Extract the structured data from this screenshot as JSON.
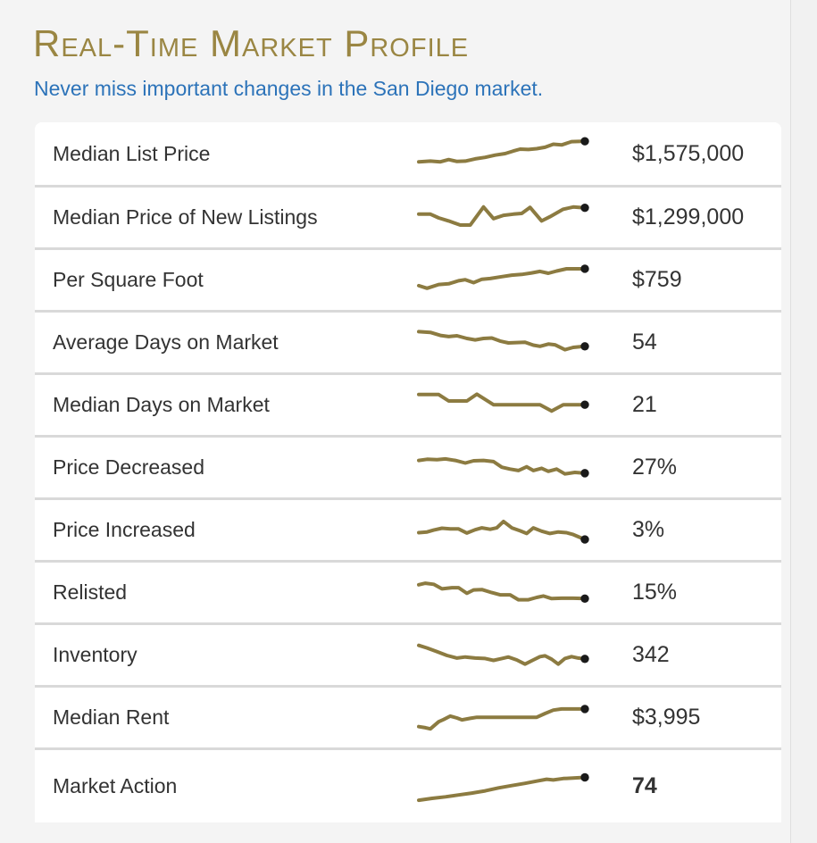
{
  "header": {
    "title": "Real-Time Market Profile",
    "subtitle": "Never miss important changes in the San Diego market."
  },
  "colors": {
    "title": "#9a8643",
    "subtitle": "#2c73b9",
    "sparkline": "#8c7b41",
    "dot": "#1a1a1a",
    "row_text": "#333333",
    "divider": "#d9d9d9",
    "page_background": "#f4f4f4",
    "row_background": "#ffffff"
  },
  "rows": [
    {
      "label": "Median List Price",
      "value": "$1,575,000",
      "bold": false,
      "trend": [
        [
          0,
          28
        ],
        [
          7,
          30
        ],
        [
          13,
          28
        ],
        [
          18,
          34
        ],
        [
          23,
          29
        ],
        [
          28,
          30
        ],
        [
          34,
          36
        ],
        [
          40,
          40
        ],
        [
          46,
          46
        ],
        [
          52,
          50
        ],
        [
          57,
          57
        ],
        [
          61,
          62
        ],
        [
          66,
          61
        ],
        [
          71,
          63
        ],
        [
          76,
          67
        ],
        [
          81,
          75
        ],
        [
          86,
          73
        ],
        [
          92,
          82
        ],
        [
          100,
          83
        ]
      ]
    },
    {
      "label": "Median Price of New Listings",
      "value": "$1,299,000",
      "bold": false,
      "trend": [
        [
          0,
          60
        ],
        [
          7,
          60
        ],
        [
          12,
          50
        ],
        [
          18,
          42
        ],
        [
          25,
          31
        ],
        [
          31,
          31
        ],
        [
          39,
          79
        ],
        [
          45,
          48
        ],
        [
          51,
          57
        ],
        [
          57,
          60
        ],
        [
          62,
          62
        ],
        [
          67,
          78
        ],
        [
          74,
          42
        ],
        [
          79,
          53
        ],
        [
          87,
          73
        ],
        [
          93,
          79
        ],
        [
          100,
          77
        ]
      ]
    },
    {
      "label": "Per Square Foot",
      "value": "$759",
      "bold": false,
      "trend": [
        [
          0,
          36
        ],
        [
          5,
          29
        ],
        [
          12,
          39
        ],
        [
          18,
          41
        ],
        [
          24,
          49
        ],
        [
          28,
          52
        ],
        [
          33,
          44
        ],
        [
          38,
          53
        ],
        [
          43,
          55
        ],
        [
          50,
          60
        ],
        [
          56,
          64
        ],
        [
          62,
          66
        ],
        [
          68,
          70
        ],
        [
          73,
          74
        ],
        [
          78,
          69
        ],
        [
          83,
          75
        ],
        [
          89,
          81
        ],
        [
          95,
          81
        ],
        [
          100,
          81
        ]
      ]
    },
    {
      "label": "Average Days on Market",
      "value": "54",
      "bold": false,
      "trend": [
        [
          0,
          80
        ],
        [
          7,
          78
        ],
        [
          13,
          70
        ],
        [
          18,
          67
        ],
        [
          23,
          69
        ],
        [
          29,
          62
        ],
        [
          34,
          58
        ],
        [
          39,
          62
        ],
        [
          44,
          63
        ],
        [
          49,
          55
        ],
        [
          54,
          50
        ],
        [
          59,
          51
        ],
        [
          64,
          52
        ],
        [
          69,
          44
        ],
        [
          73,
          41
        ],
        [
          78,
          47
        ],
        [
          82,
          45
        ],
        [
          88,
          32
        ],
        [
          93,
          38
        ],
        [
          100,
          41
        ]
      ]
    },
    {
      "label": "Median Days on Market",
      "value": "21",
      "bold": false,
      "trend": [
        [
          0,
          79
        ],
        [
          12,
          79
        ],
        [
          18,
          62
        ],
        [
          29,
          62
        ],
        [
          35,
          80
        ],
        [
          45,
          52
        ],
        [
          55,
          52
        ],
        [
          73,
          52
        ],
        [
          80,
          35
        ],
        [
          87,
          52
        ],
        [
          94,
          52
        ],
        [
          100,
          52
        ]
      ]
    },
    {
      "label": "Price Decreased",
      "value": "27%",
      "bold": false,
      "trend": [
        [
          0,
          70
        ],
        [
          5,
          73
        ],
        [
          11,
          72
        ],
        [
          16,
          74
        ],
        [
          22,
          70
        ],
        [
          28,
          63
        ],
        [
          33,
          69
        ],
        [
          39,
          70
        ],
        [
          45,
          67
        ],
        [
          50,
          52
        ],
        [
          55,
          47
        ],
        [
          60,
          43
        ],
        [
          65,
          53
        ],
        [
          69,
          43
        ],
        [
          74,
          49
        ],
        [
          78,
          41
        ],
        [
          83,
          47
        ],
        [
          88,
          34
        ],
        [
          94,
          38
        ],
        [
          100,
          36
        ]
      ]
    },
    {
      "label": "Price Increased",
      "value": "3%",
      "bold": false,
      "trend": [
        [
          0,
          44
        ],
        [
          5,
          46
        ],
        [
          9,
          51
        ],
        [
          14,
          56
        ],
        [
          19,
          54
        ],
        [
          24,
          54
        ],
        [
          29,
          43
        ],
        [
          34,
          52
        ],
        [
          38,
          57
        ],
        [
          43,
          53
        ],
        [
          47,
          57
        ],
        [
          51,
          74
        ],
        [
          56,
          57
        ],
        [
          61,
          49
        ],
        [
          65,
          42
        ],
        [
          69,
          57
        ],
        [
          74,
          48
        ],
        [
          79,
          42
        ],
        [
          84,
          46
        ],
        [
          89,
          44
        ],
        [
          93,
          39
        ],
        [
          100,
          26
        ]
      ]
    },
    {
      "label": "Relisted",
      "value": "15%",
      "bold": false,
      "trend": [
        [
          0,
          72
        ],
        [
          4,
          76
        ],
        [
          9,
          73
        ],
        [
          14,
          61
        ],
        [
          20,
          64
        ],
        [
          24,
          64
        ],
        [
          29,
          49
        ],
        [
          33,
          58
        ],
        [
          38,
          59
        ],
        [
          44,
          51
        ],
        [
          49,
          45
        ],
        [
          55,
          45
        ],
        [
          60,
          32
        ],
        [
          66,
          32
        ],
        [
          71,
          38
        ],
        [
          75,
          42
        ],
        [
          80,
          35
        ],
        [
          86,
          36
        ],
        [
          93,
          36
        ],
        [
          100,
          35
        ]
      ]
    },
    {
      "label": "Inventory",
      "value": "342",
      "bold": false,
      "trend": [
        [
          0,
          77
        ],
        [
          5,
          70
        ],
        [
          11,
          60
        ],
        [
          17,
          50
        ],
        [
          23,
          43
        ],
        [
          28,
          46
        ],
        [
          34,
          43
        ],
        [
          40,
          42
        ],
        [
          45,
          37
        ],
        [
          50,
          42
        ],
        [
          54,
          46
        ],
        [
          59,
          38
        ],
        [
          64,
          27
        ],
        [
          69,
          38
        ],
        [
          73,
          47
        ],
        [
          76,
          49
        ],
        [
          80,
          40
        ],
        [
          84,
          27
        ],
        [
          88,
          42
        ],
        [
          92,
          47
        ],
        [
          96,
          43
        ],
        [
          100,
          41
        ]
      ]
    },
    {
      "label": "Median Rent",
      "value": "$3,995",
      "bold": false,
      "trend": [
        [
          0,
          27
        ],
        [
          4,
          24
        ],
        [
          7,
          21
        ],
        [
          12,
          40
        ],
        [
          15,
          46
        ],
        [
          19,
          55
        ],
        [
          23,
          50
        ],
        [
          26,
          45
        ],
        [
          31,
          49
        ],
        [
          35,
          52
        ],
        [
          42,
          52
        ],
        [
          50,
          52
        ],
        [
          58,
          52
        ],
        [
          66,
          52
        ],
        [
          71,
          52
        ],
        [
          76,
          62
        ],
        [
          81,
          71
        ],
        [
          86,
          74
        ],
        [
          93,
          74
        ],
        [
          100,
          74
        ]
      ]
    },
    {
      "label": "Market Action",
      "value": "74",
      "bold": true,
      "trend": [
        [
          0,
          14
        ],
        [
          8,
          19
        ],
        [
          16,
          23
        ],
        [
          24,
          28
        ],
        [
          32,
          33
        ],
        [
          40,
          39
        ],
        [
          48,
          47
        ],
        [
          56,
          53
        ],
        [
          64,
          59
        ],
        [
          71,
          65
        ],
        [
          77,
          70
        ],
        [
          81,
          68
        ],
        [
          87,
          72
        ],
        [
          93,
          73
        ],
        [
          100,
          75
        ]
      ]
    }
  ]
}
